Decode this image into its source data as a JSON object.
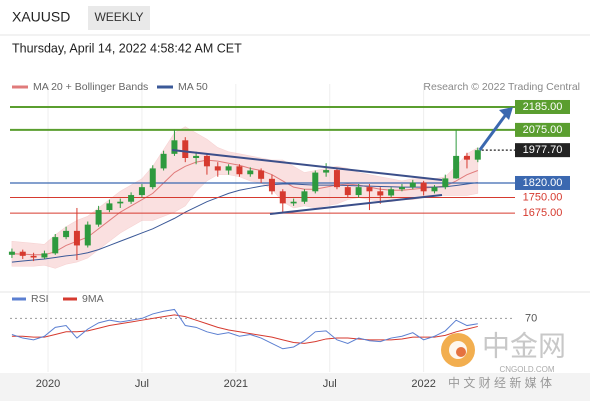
{
  "chart_data": {
    "type": "candlestick",
    "title": "XAUUSD",
    "timeframe": "WEEKLY",
    "timestamp": "Thursday, April 14, 2022 4:58:42 AM CET",
    "legend": [
      {
        "name": "MA 20 + Bollinger Bands",
        "color": "#e07b7b"
      },
      {
        "name": "MA 50",
        "color": "#3b5998"
      }
    ],
    "source": "Research © 2022 Trading Central",
    "x": [
      0,
      3,
      6,
      9,
      12,
      15,
      18,
      21,
      24,
      27,
      30,
      33,
      36,
      39,
      42,
      45,
      48,
      51,
      54,
      57,
      60,
      63,
      66,
      69,
      72,
      75,
      78,
      81,
      84,
      87,
      90,
      93,
      96,
      99,
      102,
      105,
      108,
      111,
      114,
      117,
      120,
      123,
      126,
      129
    ],
    "xlim": [
      -3.3,
      139.3
    ],
    "xticks": [
      {
        "value": 10,
        "label": "2020"
      },
      {
        "value": 36,
        "label": "Jul"
      },
      {
        "value": 62,
        "label": "2021"
      },
      {
        "value": 88,
        "label": "Jul"
      },
      {
        "value": 114,
        "label": "2022"
      }
    ],
    "ylim": [
      1330,
      2257
    ],
    "open": [
      1475,
      1490,
      1470,
      1462,
      1482,
      1560,
      1590,
      1520,
      1620,
      1690,
      1722,
      1730,
      1762,
      1800,
      1890,
      1960,
      2025,
      1940,
      1950,
      1900,
      1880,
      1900,
      1862,
      1880,
      1840,
      1780,
      1722,
      1730,
      1780,
      1870,
      1882,
      1800,
      1762,
      1800,
      1780,
      1760,
      1790,
      1800,
      1822,
      1780,
      1800,
      1842,
      1950,
      1932
    ],
    "high": [
      1505,
      1500,
      1485,
      1495,
      1575,
      1610,
      1700,
      1635,
      1710,
      1740,
      1745,
      1775,
      1815,
      1905,
      1975,
      2075,
      2040,
      1970,
      1960,
      1920,
      1910,
      1910,
      1895,
      1890,
      1860,
      1790,
      1745,
      1790,
      1880,
      1915,
      1890,
      1810,
      1815,
      1815,
      1800,
      1800,
      1815,
      1835,
      1830,
      1810,
      1860,
      2075,
      1965,
      1990
    ],
    "low": [
      1460,
      1455,
      1445,
      1455,
      1475,
      1550,
      1450,
      1510,
      1610,
      1680,
      1700,
      1720,
      1750,
      1790,
      1880,
      1950,
      1920,
      1910,
      1860,
      1850,
      1860,
      1850,
      1850,
      1820,
      1765,
      1680,
      1710,
      1720,
      1770,
      1850,
      1790,
      1750,
      1750,
      1690,
      1720,
      1750,
      1780,
      1790,
      1760,
      1770,
      1790,
      1840,
      1890,
      1920
    ],
    "close": [
      1490,
      1470,
      1462,
      1482,
      1560,
      1590,
      1520,
      1620,
      1690,
      1722,
      1730,
      1762,
      1800,
      1890,
      1960,
      2025,
      1940,
      1950,
      1900,
      1880,
      1900,
      1862,
      1880,
      1840,
      1780,
      1722,
      1730,
      1780,
      1870,
      1882,
      1800,
      1762,
      1800,
      1780,
      1760,
      1790,
      1800,
      1822,
      1780,
      1800,
      1842,
      1950,
      1932,
      1977.7
    ],
    "up_color": "#2e9a3e",
    "down_color": "#d63a2f",
    "ma20": [
      1480,
      1478,
      1475,
      1475,
      1490,
      1520,
      1540,
      1560,
      1600,
      1640,
      1680,
      1710,
      1740,
      1770,
      1820,
      1870,
      1900,
      1920,
      1930,
      1925,
      1915,
      1905,
      1890,
      1880,
      1860,
      1830,
      1800,
      1790,
      1790,
      1800,
      1810,
      1815,
      1810,
      1800,
      1790,
      1785,
      1785,
      1790,
      1795,
      1800,
      1805,
      1830,
      1860,
      1880
    ],
    "bb_upper": [
      1540,
      1535,
      1530,
      1525,
      1570,
      1610,
      1640,
      1660,
      1700,
      1740,
      1780,
      1810,
      1840,
      1900,
      1980,
      2060,
      2090,
      2060,
      2030,
      1990,
      1970,
      1960,
      1950,
      1940,
      1930,
      1930,
      1900,
      1870,
      1880,
      1890,
      1900,
      1890,
      1870,
      1860,
      1850,
      1840,
      1830,
      1840,
      1840,
      1840,
      1850,
      1900,
      1960,
      1990
    ],
    "bb_lower": [
      1420,
      1420,
      1420,
      1425,
      1410,
      1430,
      1440,
      1460,
      1500,
      1540,
      1580,
      1610,
      1640,
      1640,
      1660,
      1680,
      1710,
      1780,
      1830,
      1860,
      1860,
      1850,
      1830,
      1820,
      1790,
      1730,
      1700,
      1710,
      1700,
      1710,
      1720,
      1740,
      1750,
      1740,
      1730,
      1730,
      1740,
      1740,
      1750,
      1760,
      1760,
      1760,
      1760,
      1770
    ],
    "ma50": [
      1440,
      1445,
      1450,
      1455,
      1462,
      1470,
      1475,
      1485,
      1500,
      1520,
      1540,
      1560,
      1580,
      1600,
      1625,
      1650,
      1680,
      1705,
      1730,
      1750,
      1770,
      1785,
      1795,
      1805,
      1812,
      1815,
      1815,
      1812,
      1810,
      1810,
      1810,
      1808,
      1806,
      1805,
      1803,
      1802,
      1800,
      1800,
      1800,
      1800,
      1802,
      1808,
      1815,
      1822
    ],
    "levels": [
      {
        "value": 2185,
        "label": "2185.00",
        "color": "#5a9e2f"
      },
      {
        "value": 2075,
        "label": "2075.00",
        "color": "#5a9e2f"
      },
      {
        "value": 1977.7,
        "label": "1977.70",
        "color": "#222222"
      },
      {
        "value": 1820,
        "label": "1820.00",
        "color": "#3b68b0"
      },
      {
        "value": 1750,
        "label": "1750.00",
        "color": "#d63a2f"
      },
      {
        "value": 1675,
        "label": "1675.00",
        "color": "#d63a2f"
      }
    ],
    "rsi_legend": [
      {
        "name": "RSI",
        "color": "#5b7fd1"
      },
      {
        "name": "9MA",
        "color": "#d63a2f"
      }
    ],
    "rsi_ylim": [
      10,
      85
    ],
    "rsi_yticks": [
      70
    ],
    "rsi": [
      52,
      48,
      46,
      50,
      60,
      62,
      48,
      58,
      65,
      68,
      66,
      68,
      70,
      75,
      78,
      80,
      62,
      60,
      55,
      52,
      54,
      50,
      52,
      48,
      42,
      36,
      38,
      45,
      55,
      56,
      46,
      42,
      48,
      45,
      44,
      48,
      50,
      54,
      46,
      50,
      56,
      68,
      62,
      64
    ],
    "rsi_ma": [
      50,
      50,
      49,
      49,
      52,
      55,
      55,
      56,
      59,
      62,
      64,
      66,
      68,
      70,
      72,
      74,
      72,
      68,
      64,
      60,
      57,
      55,
      53,
      51,
      49,
      46,
      43,
      42,
      44,
      47,
      48,
      48,
      47,
      46,
      46,
      46,
      47,
      49,
      49,
      49,
      51,
      55,
      58,
      61
    ],
    "watermark": {
      "name": "中金网",
      "site": "CNGOLD.COM",
      "tagline": "中 文 财 经 新 媒 体"
    }
  }
}
